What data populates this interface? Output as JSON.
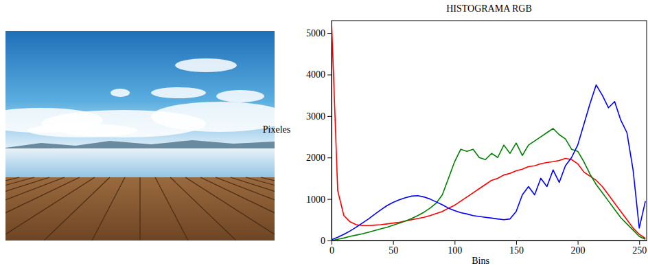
{
  "chart_data": {
    "type": "line",
    "title": "HISTOGRAMA RGB",
    "x_label": "Bins",
    "y_label": "Pixeles",
    "xlim": [
      0,
      256
    ],
    "ylim": [
      0,
      5300
    ],
    "xticks": [
      0,
      50,
      100,
      150,
      200,
      250
    ],
    "yticks": [
      0,
      1000,
      2000,
      3000,
      4000,
      5000
    ],
    "grid": false,
    "x": [
      0,
      5,
      10,
      15,
      20,
      25,
      30,
      35,
      40,
      45,
      50,
      55,
      60,
      65,
      70,
      75,
      80,
      85,
      90,
      95,
      100,
      105,
      110,
      115,
      120,
      125,
      130,
      135,
      140,
      145,
      150,
      155,
      160,
      165,
      170,
      175,
      180,
      185,
      190,
      195,
      200,
      205,
      210,
      215,
      220,
      225,
      230,
      235,
      240,
      245,
      250,
      255
    ],
    "series": [
      {
        "color": "#ff0000",
        "values": [
          5300,
          1200,
          600,
          450,
          380,
          360,
          360,
          370,
          380,
          400,
          420,
          440,
          470,
          500,
          530,
          560,
          600,
          650,
          700,
          780,
          850,
          950,
          1050,
          1150,
          1250,
          1350,
          1450,
          1500,
          1580,
          1620,
          1680,
          1720,
          1780,
          1800,
          1850,
          1880,
          1900,
          1930,
          1980,
          1950,
          1850,
          1650,
          1550,
          1450,
          1300,
          1100,
          900,
          700,
          500,
          300,
          150,
          50
        ]
      },
      {
        "color": "#008000",
        "values": [
          0,
          30,
          60,
          100,
          130,
          160,
          200,
          240,
          280,
          320,
          370,
          420,
          470,
          530,
          600,
          680,
          780,
          900,
          1100,
          1500,
          1900,
          2200,
          2150,
          2200,
          2000,
          1950,
          2100,
          2000,
          2300,
          2100,
          2350,
          2050,
          2300,
          2400,
          2500,
          2600,
          2700,
          2550,
          2450,
          2200,
          2150,
          1900,
          1600,
          1350,
          1150,
          950,
          750,
          550,
          400,
          250,
          100,
          30
        ]
      },
      {
        "color": "#0000ff",
        "values": [
          20,
          80,
          150,
          230,
          320,
          420,
          520,
          630,
          740,
          840,
          920,
          980,
          1030,
          1070,
          1080,
          1050,
          1000,
          930,
          860,
          780,
          720,
          670,
          640,
          600,
          580,
          560,
          540,
          520,
          500,
          520,
          700,
          1100,
          1300,
          1100,
          1500,
          1300,
          1700,
          1400,
          1800,
          2000,
          2300,
          2800,
          3300,
          3750,
          3500,
          3200,
          3350,
          2900,
          2600,
          1700,
          300,
          950
        ]
      }
    ]
  }
}
